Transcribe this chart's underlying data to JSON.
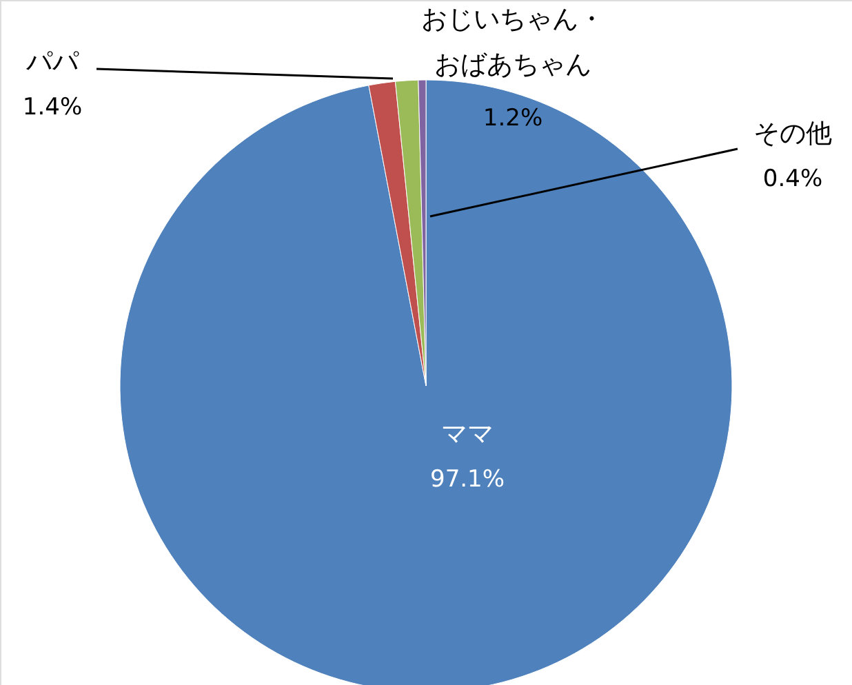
{
  "chart_data": {
    "type": "pie",
    "categories": [
      "ママ",
      "パパ",
      "おじいちゃん・おばあちゃん",
      "その他"
    ],
    "values": [
      97.1,
      1.4,
      1.2,
      0.4
    ],
    "colors": [
      "#4f81bd",
      "#c0504d",
      "#9bbb59",
      "#8064a2"
    ],
    "value_labels": [
      "97.1%",
      "1.4%",
      "1.2%",
      "0.4%"
    ]
  }
}
